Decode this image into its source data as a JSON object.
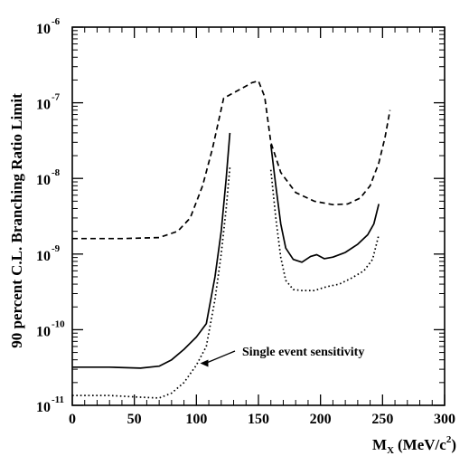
{
  "chart_data": {
    "type": "line",
    "xlabel_main": "M",
    "xlabel_sub": "X",
    "xlabel_unit": "(MeV/c",
    "xlabel_sup": "2",
    "xlabel_close": ")",
    "ylabel": "90 percent C.L. Branching Ratio Limit",
    "xlim": [
      0,
      300
    ],
    "ylog_range": [
      -11,
      -6
    ],
    "yscale": "log",
    "x_ticks": [
      {
        "value": 0,
        "label": "0"
      },
      {
        "value": 50,
        "label": "50"
      },
      {
        "value": 100,
        "label": "100"
      },
      {
        "value": 150,
        "label": "150"
      },
      {
        "value": 200,
        "label": "200"
      },
      {
        "value": 250,
        "label": "250"
      },
      {
        "value": 300,
        "label": "300"
      }
    ],
    "y_ticks": [
      {
        "exp": -11,
        "base": "10",
        "sup": "-11"
      },
      {
        "exp": -10,
        "base": "10",
        "sup": "-10"
      },
      {
        "exp": -9,
        "base": "10",
        "sup": "-9"
      },
      {
        "exp": -8,
        "base": "10",
        "sup": "-8"
      },
      {
        "exp": -7,
        "base": "10",
        "sup": "-7"
      },
      {
        "exp": -6,
        "base": "10",
        "sup": "-6"
      }
    ],
    "series": [
      {
        "style": "dashed",
        "segments": [
          [
            [
              0,
              1.6e-09
            ],
            [
              40,
              1.6e-09
            ],
            [
              70,
              1.65e-09
            ],
            [
              85,
              2e-09
            ],
            [
              95,
              3e-09
            ],
            [
              105,
              8e-09
            ],
            [
              113,
              2.5e-08
            ],
            [
              122,
              1.15e-07
            ],
            [
              135,
              1.5e-07
            ],
            [
              145,
              1.85e-07
            ],
            [
              150,
              1.95e-07
            ],
            [
              155,
              1.2e-07
            ],
            [
              160,
              3e-08
            ],
            [
              168,
              1.2e-08
            ],
            [
              180,
              6.5e-09
            ],
            [
              195,
              5e-09
            ],
            [
              210,
              4.5e-09
            ],
            [
              222,
              4.6e-09
            ],
            [
              232,
              5.5e-09
            ],
            [
              240,
              8e-09
            ],
            [
              247,
              1.6e-08
            ],
            [
              252,
              3.5e-08
            ],
            [
              256,
              8e-08
            ]
          ]
        ]
      },
      {
        "style": "solid",
        "segments": [
          [
            [
              0,
              3.2e-11
            ],
            [
              30,
              3.2e-11
            ],
            [
              55,
              3.1e-11
            ],
            [
              70,
              3.3e-11
            ],
            [
              80,
              4e-11
            ],
            [
              90,
              5.5e-11
            ],
            [
              100,
              8e-11
            ],
            [
              108,
              1.2e-10
            ],
            [
              115,
              5e-10
            ],
            [
              120,
              2e-09
            ],
            [
              124,
              1e-08
            ],
            [
              127,
              4e-08
            ]
          ],
          [
            [
              160,
              2.8e-08
            ],
            [
              164,
              8e-09
            ],
            [
              168,
              2.5e-09
            ],
            [
              172,
              1.2e-09
            ],
            [
              178,
              8.5e-10
            ],
            [
              185,
              7.8e-10
            ],
            [
              192,
              9.3e-10
            ],
            [
              197,
              9.8e-10
            ],
            [
              203,
              8.7e-10
            ],
            [
              210,
              9.1e-10
            ],
            [
              220,
              1.05e-09
            ],
            [
              230,
              1.35e-09
            ],
            [
              238,
              1.8e-09
            ],
            [
              243,
              2.5e-09
            ],
            [
              247,
              4.6e-09
            ]
          ]
        ]
      },
      {
        "style": "dotted",
        "segments": [
          [
            [
              0,
              1.35e-11
            ],
            [
              30,
              1.35e-11
            ],
            [
              55,
              1.28e-11
            ],
            [
              70,
              1.25e-11
            ],
            [
              80,
              1.45e-11
            ],
            [
              90,
              2e-11
            ],
            [
              100,
              3.4e-11
            ],
            [
              108,
              6e-11
            ],
            [
              115,
              2.5e-10
            ],
            [
              120,
              1e-09
            ],
            [
              124,
              4e-09
            ],
            [
              127,
              1.4e-08
            ]
          ],
          [
            [
              160,
              1.3e-08
            ],
            [
              164,
              3e-09
            ],
            [
              168,
              9e-10
            ],
            [
              172,
              4.5e-10
            ],
            [
              178,
              3.4e-10
            ],
            [
              185,
              3.3e-10
            ],
            [
              195,
              3.3e-10
            ],
            [
              205,
              3.7e-10
            ],
            [
              215,
              4e-10
            ],
            [
              225,
              4.8e-10
            ],
            [
              235,
              6e-10
            ],
            [
              242,
              8.5e-10
            ],
            [
              247,
              1.8e-09
            ]
          ]
        ]
      }
    ],
    "annotation": {
      "text": "Single event sensitivity",
      "arrow_to": [
        103,
        3.6e-11
      ]
    }
  }
}
